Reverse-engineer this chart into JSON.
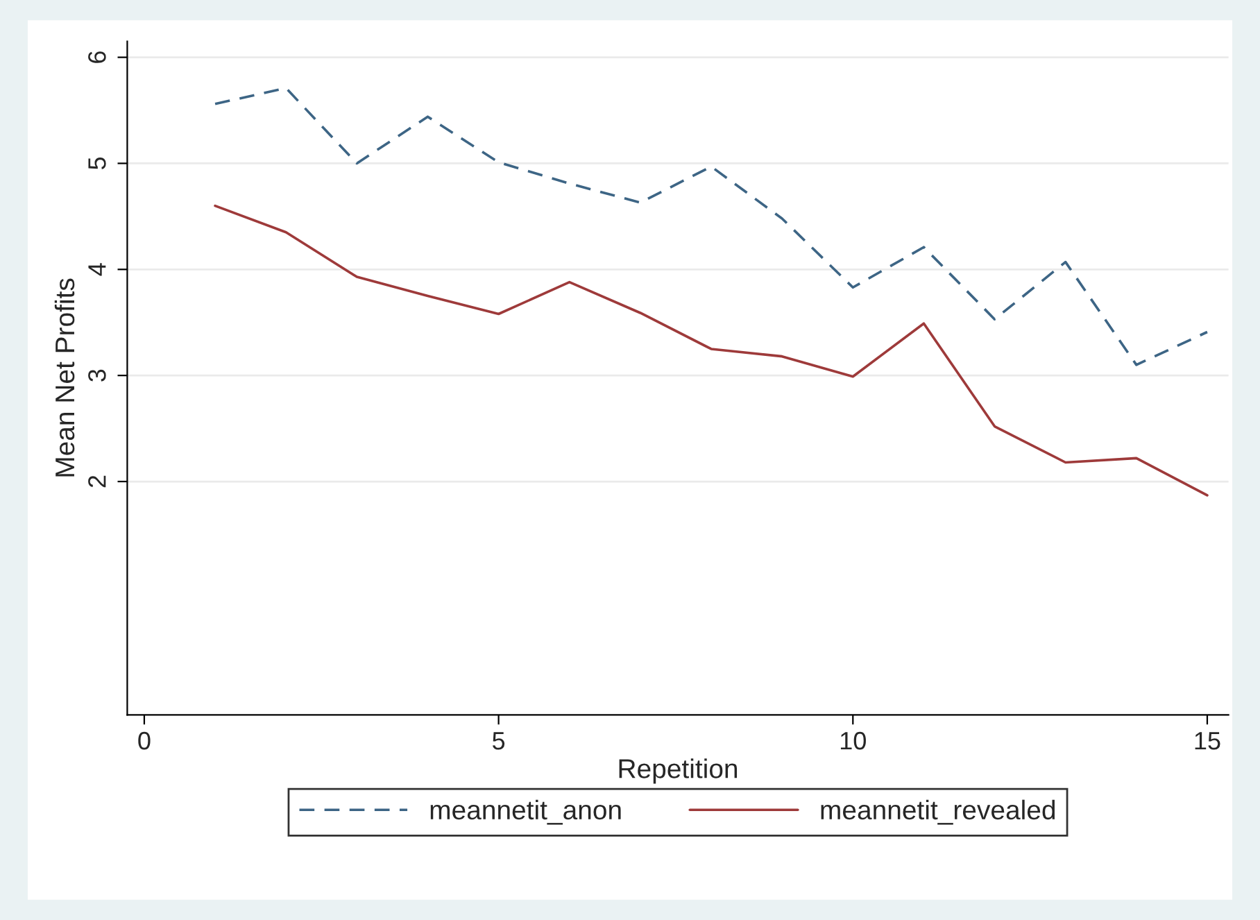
{
  "chart_data": {
    "type": "line",
    "xlabel": "Repetition",
    "ylabel": "Mean Net Profits",
    "x": [
      1,
      2,
      3,
      4,
      5,
      6,
      7,
      8,
      9,
      10,
      11,
      12,
      13,
      14,
      15
    ],
    "series": [
      {
        "name": "meannetit_anon",
        "color": "#3d6585",
        "line_style": "dashed",
        "values": [
          5.56,
          5.71,
          5.0,
          5.44,
          5.01,
          4.81,
          4.63,
          4.97,
          4.48,
          3.83,
          4.21,
          3.53,
          4.07,
          3.1,
          3.41
        ]
      },
      {
        "name": "meannetit_revealed",
        "color": "#9e3a3a",
        "line_style": "solid",
        "values": [
          4.6,
          4.35,
          3.93,
          3.75,
          3.58,
          3.88,
          3.59,
          3.25,
          3.18,
          2.99,
          3.49,
          2.52,
          2.18,
          2.22,
          1.87
        ]
      }
    ],
    "xlim": [
      -0.24,
      15.3
    ],
    "ylim": [
      -0.2,
      6.15
    ],
    "xticks": [
      0,
      5,
      10,
      15
    ],
    "yticks": [
      2,
      3,
      4,
      5,
      6
    ],
    "grid": "y",
    "legend": "bottom",
    "marker": "none"
  }
}
